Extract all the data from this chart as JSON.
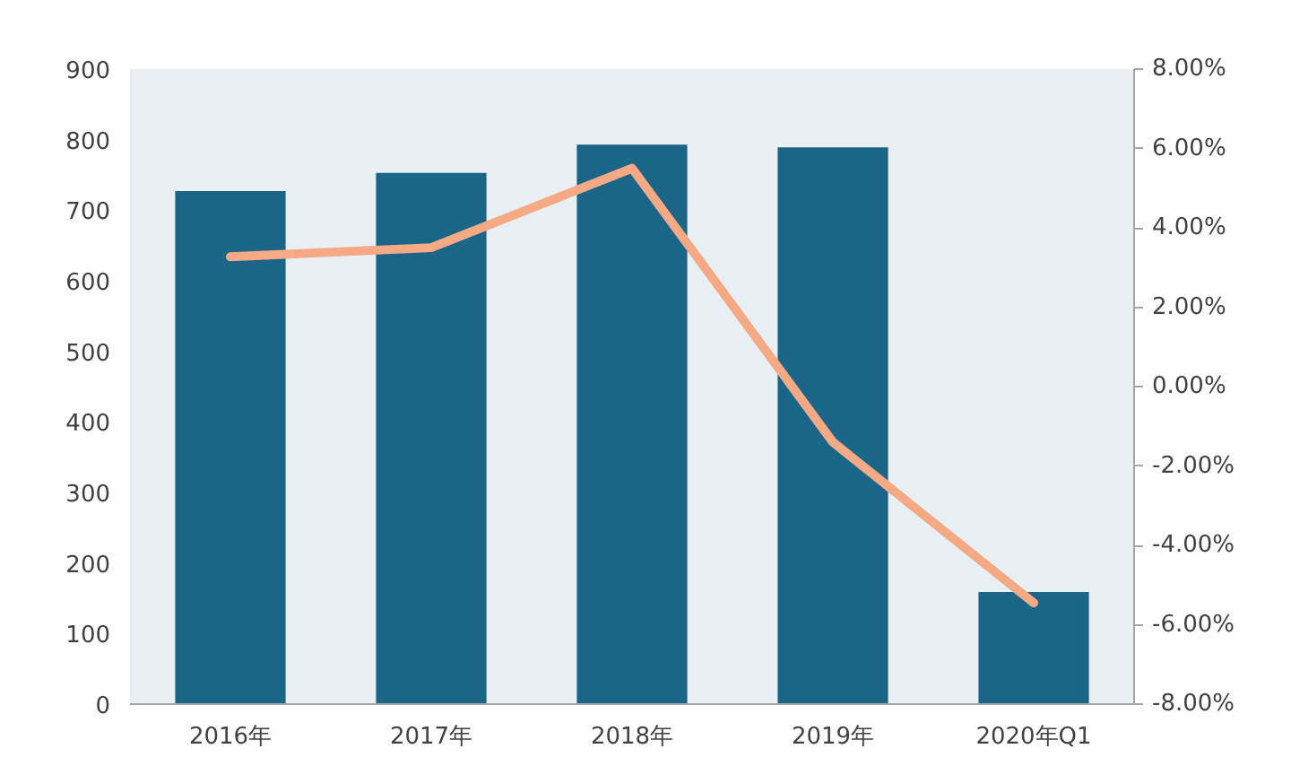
{
  "chart_data": {
    "type": "bar",
    "categories": [
      "2016年",
      "2017年",
      "2018年",
      "2019年",
      "2020年Q1"
    ],
    "series": [
      {
        "color": "#1b6688",
        "values": [
          727,
          753,
          793,
          789,
          159
        ]
      },
      {
        "type": "line",
        "axis": "y2",
        "color": "#f5aa85",
        "values": [
          3.27,
          3.5,
          5.5,
          -1.4,
          -5.45
        ]
      }
    ],
    "ylim": [
      0,
      900
    ],
    "yticks": [
      0,
      100,
      200,
      300,
      400,
      500,
      600,
      700,
      800,
      900
    ],
    "y2lim": [
      -8,
      8
    ],
    "y2ticks": [
      {
        "value": 8,
        "label": "8.00%"
      },
      {
        "value": 6,
        "label": "6.00%"
      },
      {
        "value": 4,
        "label": "4.00%"
      },
      {
        "value": 2,
        "label": "2.00%"
      },
      {
        "value": 0,
        "label": "0.00%"
      },
      {
        "value": -2,
        "label": "-2.00%"
      },
      {
        "value": -4,
        "label": "-4.00%"
      },
      {
        "value": -6,
        "label": "-6.00%"
      },
      {
        "value": -8,
        "label": "-8.00%"
      }
    ],
    "grid": false,
    "marker": "none",
    "line_style": "solid"
  }
}
